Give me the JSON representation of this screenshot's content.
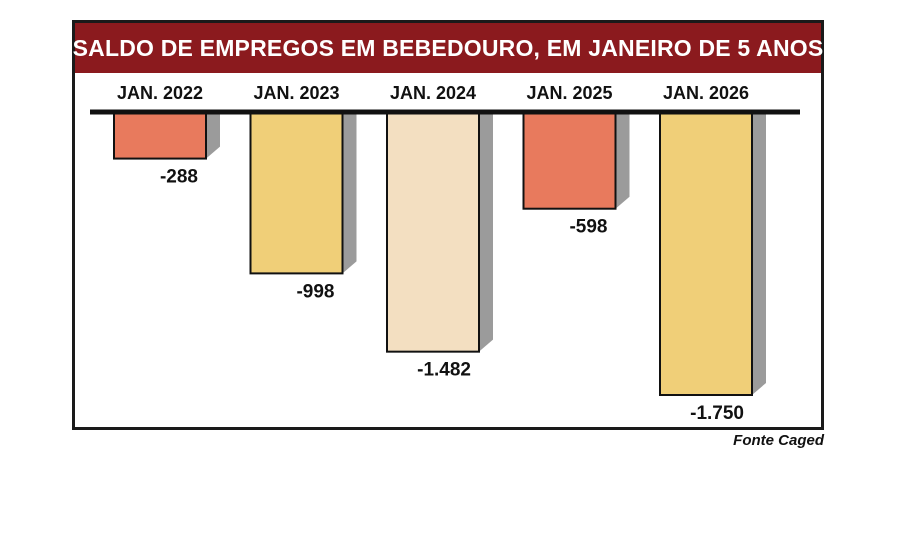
{
  "chart_data": {
    "type": "bar",
    "title": "SALDO DE EMPREGOS EM BEBEDOURO, EM JANEIRO DE 5 ANOS",
    "categories": [
      "JAN. 2022",
      "JAN. 2023",
      "JAN. 2024",
      "JAN. 2025",
      "JAN. 2026"
    ],
    "values": [
      -288,
      -998,
      -1482,
      -598,
      -1750
    ],
    "value_labels": [
      "-288",
      "-998",
      "-1.482",
      "-598",
      "-1.750"
    ],
    "bar_colors": [
      "#e87a5d",
      "#f0cf78",
      "#f3dfc1",
      "#e87a5d",
      "#f0cf78"
    ],
    "ylim": [
      -1750,
      0
    ],
    "grid": false,
    "legend": "none",
    "xlabel": "",
    "ylabel": ""
  },
  "colors": {
    "title_background": "#8b1a1e",
    "title_text": "#ffffff",
    "bar_shadow": "#9b9b9b",
    "baseline": "#111111"
  },
  "source": "Fonte Caged"
}
